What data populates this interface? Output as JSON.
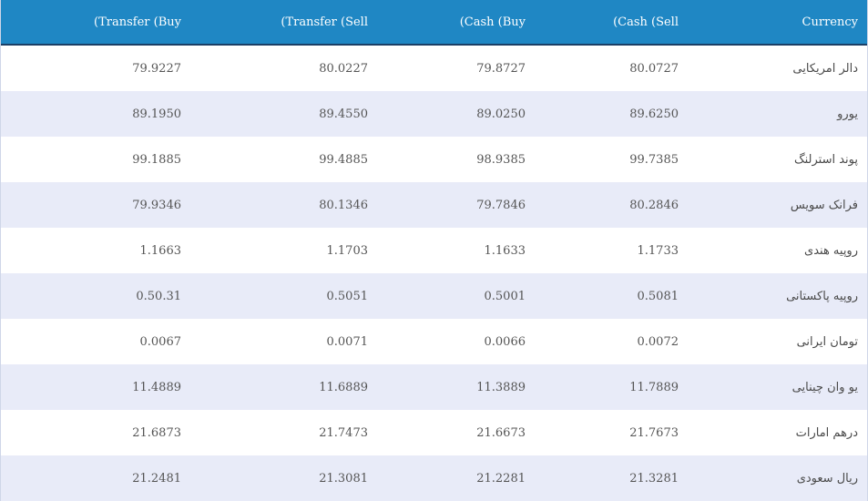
{
  "header": {
    "transfer_buy": "(Transfer (Buy",
    "transfer_sell": "(Transfer (Sell",
    "cash_buy": "(Cash (Buy",
    "cash_sell": "(Cash (Sell",
    "currency": "Currency"
  },
  "rows": [
    {
      "currency": "دالر امریکایی",
      "cash_sell": "80.0727",
      "cash_buy": "79.8727",
      "transfer_sell": "80.0227",
      "transfer_buy": "79.9227"
    },
    {
      "currency": "یورو",
      "cash_sell": "89.6250",
      "cash_buy": "89.0250",
      "transfer_sell": "89.4550",
      "transfer_buy": "89.1950"
    },
    {
      "currency": "پوند استرلنگ",
      "cash_sell": "99.7385",
      "cash_buy": "98.9385",
      "transfer_sell": "99.4885",
      "transfer_buy": "99.1885"
    },
    {
      "currency": "فرانک سویس",
      "cash_sell": "80.2846",
      "cash_buy": "79.7846",
      "transfer_sell": "80.1346",
      "transfer_buy": "79.9346"
    },
    {
      "currency": "روپیه هندی",
      "cash_sell": "1.1733",
      "cash_buy": "1.1633",
      "transfer_sell": "1.1703",
      "transfer_buy": "1.1663"
    },
    {
      "currency": "روپیه پاکستانی",
      "cash_sell": "0.5081",
      "cash_buy": "0.5001",
      "transfer_sell": "0.5051",
      "transfer_buy": "0.50.31"
    },
    {
      "currency": "تومان ایرانی",
      "cash_sell": "0.0072",
      "cash_buy": "0.0066",
      "transfer_sell": "0.0071",
      "transfer_buy": "0.0067"
    },
    {
      "currency": "یو وان چینایی",
      "cash_sell": "11.7889",
      "cash_buy": "11.3889",
      "transfer_sell": "11.6889",
      "transfer_buy": "11.4889"
    },
    {
      "currency": "درهم امارات",
      "cash_sell": "21.7673",
      "cash_buy": "21.6673",
      "transfer_sell": "21.7473",
      "transfer_buy": "21.6873"
    },
    {
      "currency": "ریال سعودی",
      "cash_sell": "21.3281",
      "cash_buy": "21.2281",
      "transfer_sell": "21.3081",
      "transfer_buy": "21.2481"
    }
  ],
  "colors": {
    "header_bg": "#1f87c4",
    "header_border": "#1b3f66",
    "row_even_bg": "#e8ebf8",
    "row_odd_bg": "#ffffff"
  }
}
